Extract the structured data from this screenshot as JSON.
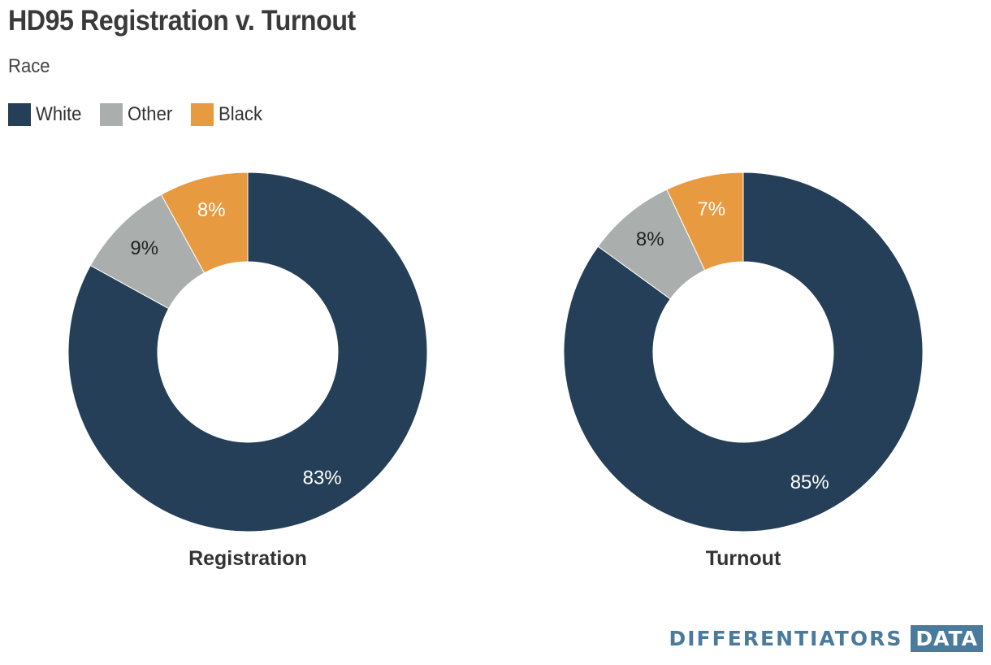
{
  "header": {
    "title": "HD95 Registration v. Turnout",
    "subtitle": "Race"
  },
  "legend": [
    {
      "label": "White",
      "color": "#243f57"
    },
    {
      "label": "Other",
      "color": "#aaafae"
    },
    {
      "label": "Black",
      "color": "#e89a40"
    }
  ],
  "chart_data": [
    {
      "type": "pie",
      "variant": "donut",
      "title": "Registration",
      "slices": [
        {
          "label": "White",
          "value": 83,
          "display": "83%",
          "color": "#243f57"
        },
        {
          "label": "Other",
          "value": 9,
          "display": "9%",
          "color": "#aaafae"
        },
        {
          "label": "Black",
          "value": 8,
          "display": "8%",
          "color": "#e89a40"
        }
      ]
    },
    {
      "type": "pie",
      "variant": "donut",
      "title": "Turnout",
      "slices": [
        {
          "label": "White",
          "value": 85,
          "display": "85%",
          "color": "#243f57"
        },
        {
          "label": "Other",
          "value": 8,
          "display": "8%",
          "color": "#aaafae"
        },
        {
          "label": "Black",
          "value": 7,
          "display": "7%",
          "color": "#e89a40"
        }
      ]
    }
  ],
  "branding": {
    "name": "DIFFERENTIATORS",
    "tag": "DATA",
    "name_color": "#4a7a9c",
    "tag_bg": "#4a7a9c"
  }
}
